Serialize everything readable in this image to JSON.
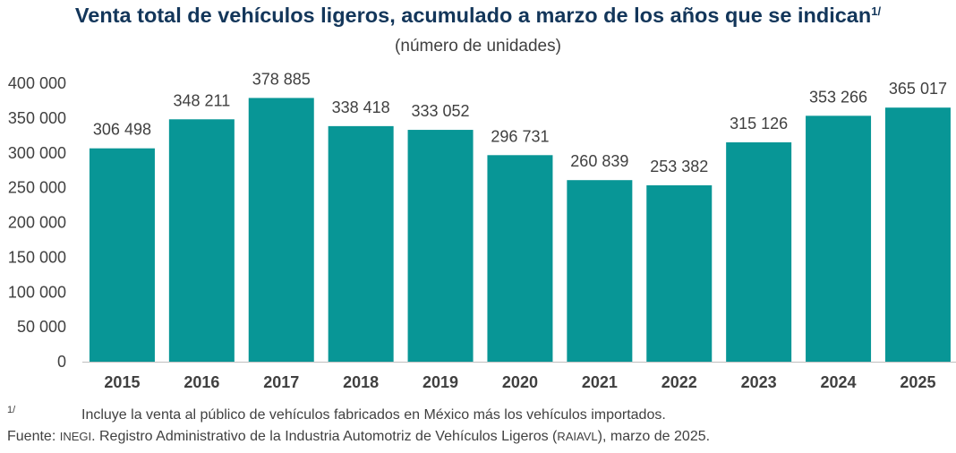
{
  "title": "Venta total de vehículos ligeros, acumulado a marzo de los años que se indican",
  "title_note_mark": "1/",
  "subtitle": "(número de unidades)",
  "chart_data": {
    "type": "bar",
    "categories": [
      "2015",
      "2016",
      "2017",
      "2018",
      "2019",
      "2020",
      "2021",
      "2022",
      "2023",
      "2024",
      "2025"
    ],
    "values": [
      306498,
      348211,
      378885,
      338418,
      333052,
      296731,
      260839,
      253382,
      315126,
      353266,
      365017
    ],
    "data_labels": [
      "306 498",
      "348 211",
      "378 885",
      "338 418",
      "333 052",
      "296 731",
      "260 839",
      "253 382",
      "315 126",
      "353 266",
      "365 017"
    ],
    "y_ticks": [
      0,
      50000,
      100000,
      150000,
      200000,
      250000,
      300000,
      350000,
      400000
    ],
    "y_tick_labels": [
      "0",
      "50 000",
      "100 000",
      "150 000",
      "200 000",
      "250 000",
      "300 000",
      "350 000",
      "400 000"
    ],
    "ylim": [
      0,
      400000
    ],
    "bar_color": "#089696",
    "grid": false,
    "legend": "none"
  },
  "footnote": {
    "mark": "1/",
    "text": "Incluye la venta al público de vehículos fabricados en México más los vehículos importados."
  },
  "source": {
    "prefix": "Fuente: ",
    "org": "INEGI",
    "text1": ". Registro Administrativo de la Industria Automotriz de Vehículos Ligeros (",
    "acronym": "RAIAVL",
    "text2": "), marzo de 2025."
  }
}
